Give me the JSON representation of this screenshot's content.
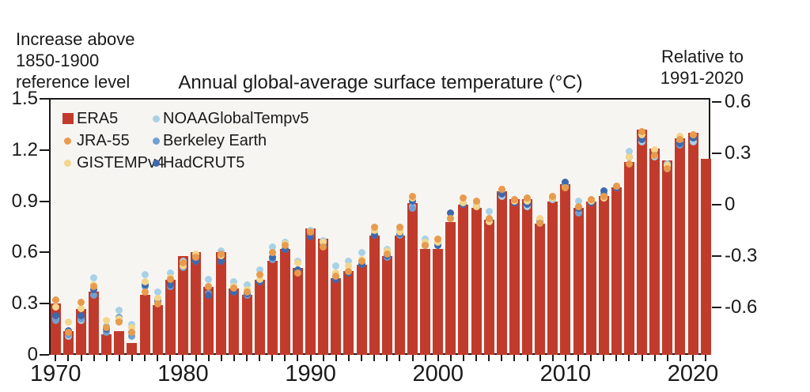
{
  "annotations": {
    "left": [
      "Increase above",
      "1850-1900",
      "reference level"
    ],
    "right": [
      "Relative to",
      "1991-2020"
    ]
  },
  "legend": {
    "columns": [
      {
        "entries": [
          {
            "label": "ERA5",
            "marker": "square",
            "color": "#c13b2c"
          },
          {
            "label": "JRA-55",
            "marker": "dot",
            "color": "#e89b4d"
          },
          {
            "label": "GISTEMPv4",
            "marker": "dot",
            "color": "#f3d68b"
          }
        ]
      },
      {
        "entries": [
          {
            "label": "NOAAGlobalTempv5",
            "marker": "dot",
            "color": "#a8d1e7"
          },
          {
            "label": "Berkeley Earth",
            "marker": "dot",
            "color": "#6fa0d0"
          },
          {
            "label": "HadCRUT5",
            "marker": "dot",
            "color": "#3d69ae"
          }
        ]
      }
    ]
  },
  "colors": {
    "background": "#ffffff",
    "plot_background": "#f6f5f2",
    "axis": "#1a1a1a",
    "bar_red": "#c13b2c"
  },
  "chart_data": {
    "type": "bar+scatter",
    "title": "Annual global-average surface temperature (°C)",
    "grid": false,
    "legend_position": "top-left",
    "ylim": [
      0,
      1.5
    ],
    "x": [
      1970,
      1971,
      1972,
      1973,
      1974,
      1975,
      1976,
      1977,
      1978,
      1979,
      1980,
      1981,
      1982,
      1983,
      1984,
      1985,
      1986,
      1987,
      1988,
      1989,
      1990,
      1991,
      1992,
      1993,
      1994,
      1995,
      1996,
      1997,
      1998,
      1999,
      2000,
      2001,
      2002,
      2003,
      2004,
      2005,
      2006,
      2007,
      2008,
      2009,
      2010,
      2011,
      2012,
      2013,
      2014,
      2015,
      2016,
      2017,
      2018,
      2019,
      2020,
      2021
    ],
    "bar_series": {
      "name": "ERA5",
      "color": "#c13b2c",
      "values": [
        0.3,
        0.14,
        0.27,
        0.37,
        0.12,
        0.14,
        0.07,
        0.35,
        0.29,
        0.44,
        0.58,
        0.6,
        0.4,
        0.6,
        0.39,
        0.35,
        0.44,
        0.55,
        0.62,
        0.51,
        0.74,
        0.68,
        0.45,
        0.49,
        0.53,
        0.7,
        0.58,
        0.7,
        0.89,
        0.62,
        0.62,
        0.78,
        0.88,
        0.86,
        0.79,
        0.96,
        0.91,
        0.91,
        0.77,
        0.9,
        1.0,
        0.86,
        0.9,
        0.93,
        0.98,
        1.13,
        1.32,
        1.21,
        1.14,
        1.27,
        1.3,
        1.15
      ]
    },
    "dot_series": [
      {
        "name": "JRA-55",
        "color": "#e89b4d",
        "values": [
          0.32,
          0.13,
          0.31,
          0.4,
          0.16,
          0.19,
          0.13,
          0.37,
          0.3,
          0.44,
          0.54,
          0.57,
          0.4,
          0.59,
          0.39,
          0.37,
          0.47,
          0.6,
          0.64,
          0.48,
          0.72,
          0.63,
          0.46,
          0.49,
          0.55,
          0.75,
          0.59,
          0.75,
          0.93,
          0.64,
          0.68,
          0.8,
          0.92,
          0.9,
          0.8,
          0.97,
          0.91,
          0.92,
          0.77,
          0.93,
          0.98,
          0.87,
          0.91,
          0.93,
          0.99,
          1.12,
          1.31,
          1.17,
          1.09,
          1.26,
          1.29,
          null
        ]
      },
      {
        "name": "GISTEMPv4",
        "color": "#f3d68b",
        "values": [
          0.28,
          0.19,
          0.27,
          0.41,
          0.2,
          0.21,
          0.16,
          0.43,
          0.33,
          0.45,
          0.52,
          0.59,
          0.4,
          0.58,
          0.4,
          0.38,
          0.44,
          0.6,
          0.65,
          0.54,
          0.72,
          0.66,
          0.48,
          0.52,
          0.56,
          0.73,
          0.61,
          0.72,
          0.92,
          0.66,
          0.66,
          0.8,
          0.89,
          0.87,
          0.78,
          0.97,
          0.9,
          0.9,
          0.8,
          0.92,
          0.98,
          0.87,
          0.9,
          0.92,
          0.99,
          1.16,
          1.29,
          1.2,
          1.11,
          1.28,
          1.29,
          null
        ]
      },
      {
        "name": "NOAAGlobalTempv5",
        "color": "#a8d1e7",
        "values": [
          0.21,
          0.11,
          0.2,
          0.45,
          0.17,
          0.26,
          0.18,
          0.47,
          0.37,
          0.48,
          0.55,
          0.57,
          0.44,
          0.61,
          0.43,
          0.41,
          0.5,
          0.63,
          0.66,
          0.55,
          0.73,
          0.67,
          0.52,
          0.55,
          0.6,
          0.72,
          0.62,
          0.73,
          0.87,
          0.68,
          0.65,
          0.8,
          0.88,
          0.89,
          0.84,
          0.93,
          0.91,
          0.87,
          0.79,
          0.91,
          0.99,
          0.9,
          0.91,
          0.92,
          0.98,
          1.19,
          1.25,
          1.16,
          1.12,
          1.25,
          1.25,
          null
        ]
      },
      {
        "name": "Berkeley Earth",
        "color": "#6fa0d0",
        "values": [
          0.2,
          0.12,
          0.21,
          0.35,
          0.13,
          0.22,
          0.11,
          0.4,
          0.31,
          0.4,
          0.51,
          0.55,
          0.36,
          0.55,
          0.37,
          0.35,
          0.43,
          0.56,
          0.62,
          0.5,
          0.7,
          0.64,
          0.46,
          0.49,
          0.53,
          0.7,
          0.57,
          0.7,
          0.86,
          0.64,
          0.64,
          0.8,
          0.88,
          0.87,
          0.79,
          0.95,
          0.89,
          0.89,
          0.78,
          0.92,
          1.0,
          0.83,
          0.89,
          0.94,
          0.98,
          1.16,
          1.26,
          1.19,
          1.09,
          1.23,
          1.27,
          null
        ]
      },
      {
        "name": "HadCRUT5",
        "color": "#3d69ae",
        "values": [
          0.23,
          0.14,
          0.23,
          0.38,
          0.15,
          0.2,
          0.13,
          0.41,
          0.32,
          0.41,
          0.53,
          0.55,
          0.35,
          0.55,
          0.37,
          0.36,
          0.43,
          0.57,
          0.62,
          0.5,
          0.69,
          0.64,
          0.44,
          0.48,
          0.53,
          0.7,
          0.58,
          0.71,
          0.9,
          0.64,
          0.64,
          0.83,
          0.88,
          0.87,
          0.79,
          0.94,
          0.89,
          0.88,
          0.77,
          0.92,
          1.01,
          0.86,
          0.89,
          0.96,
          0.98,
          1.16,
          1.26,
          1.19,
          1.09,
          1.24,
          1.27,
          null
        ]
      }
    ],
    "left_axis": {
      "ticks": [
        {
          "label": "1.5",
          "y_value": 1.5
        },
        {
          "label": "1.2",
          "y_value": 1.2
        },
        {
          "label": "0.9",
          "y_value": 0.9
        },
        {
          "label": "0.6",
          "y_value": 0.6
        },
        {
          "label": "0.3",
          "y_value": 0.3
        },
        {
          "label": "0",
          "y_value": 0
        }
      ]
    },
    "right_axis": {
      "ticks": [
        {
          "label": "0.6",
          "y_value": 1.48
        },
        {
          "label": "0.3",
          "y_value": 1.18
        },
        {
          "label": "0",
          "y_value": 0.88
        },
        {
          "label": "-0.3",
          "y_value": 0.58
        },
        {
          "label": "-0.6",
          "y_value": 0.28
        }
      ]
    },
    "x_axis": {
      "tick_years_labeled": [
        1970,
        1980,
        1990,
        2000,
        2010,
        2020
      ]
    }
  }
}
